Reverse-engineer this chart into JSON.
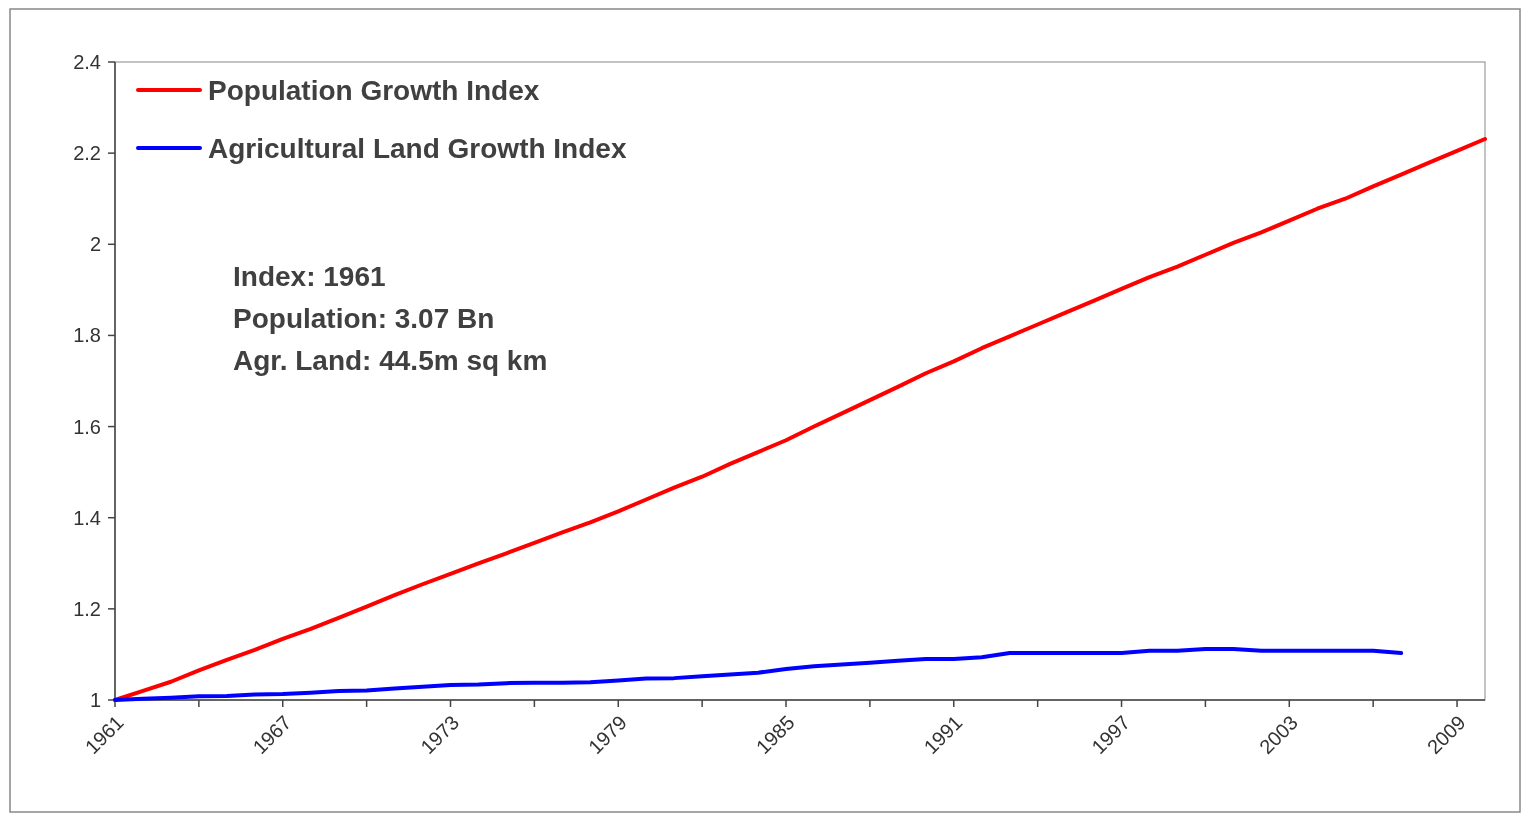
{
  "chart_data": {
    "type": "line",
    "x": [
      1961,
      1962,
      1963,
      1964,
      1965,
      1966,
      1967,
      1968,
      1969,
      1970,
      1971,
      1972,
      1973,
      1974,
      1975,
      1976,
      1977,
      1978,
      1979,
      1980,
      1981,
      1982,
      1983,
      1984,
      1985,
      1986,
      1987,
      1988,
      1989,
      1990,
      1991,
      1992,
      1993,
      1994,
      1995,
      1996,
      1997,
      1998,
      1999,
      2000,
      2001,
      2002,
      2003,
      2004,
      2005,
      2006,
      2007,
      2008,
      2009,
      2010
    ],
    "series": [
      {
        "name": "Population Growth Index",
        "color": "#ff0000",
        "values": [
          1,
          1.02,
          1.04,
          1.065,
          1.088,
          1.11,
          1.134,
          1.156,
          1.18,
          1.205,
          1.23,
          1.254,
          1.277,
          1.3,
          1.322,
          1.345,
          1.368,
          1.39,
          1.414,
          1.44,
          1.466,
          1.49,
          1.518,
          1.544,
          1.57,
          1.6,
          1.629,
          1.658,
          1.687,
          1.717,
          1.743,
          1.772,
          1.798,
          1.824,
          1.85,
          1.876,
          1.902,
          1.928,
          1.951,
          1.977,
          2.003,
          2.026,
          2.052,
          2.078,
          2.1,
          2.127,
          2.153,
          2.179,
          2.205,
          2.231
        ]
      },
      {
        "name": "Agricultural Land Growth Index",
        "color": "#0000ff",
        "values": [
          1,
          1.003,
          1.005,
          1.008,
          1.009,
          1.012,
          1.013,
          1.016,
          1.02,
          1.021,
          1.025,
          1.029,
          1.033,
          1.034,
          1.037,
          1.038,
          1.038,
          1.039,
          1.043,
          1.047,
          1.048,
          1.052,
          1.056,
          1.06,
          1.068,
          1.074,
          1.078,
          1.082,
          1.086,
          1.09,
          1.09,
          1.094,
          1.103,
          1.103,
          1.103,
          1.103,
          1.103,
          1.108,
          1.108,
          1.112,
          1.112,
          1.108,
          1.108,
          1.108,
          1.108,
          1.108,
          1.103,
          null,
          null,
          null
        ]
      }
    ],
    "xlim": [
      1961,
      2010
    ],
    "xticks": [
      1961,
      {
        "value": 1964,
        "label": null
      },
      1967,
      {
        "value": 1970,
        "label": null
      },
      1973,
      {
        "value": 1976,
        "label": null
      },
      1979,
      {
        "value": 1982,
        "label": null
      },
      1985,
      {
        "value": 1988,
        "label": null
      },
      1991,
      {
        "value": 1994,
        "label": null
      },
      1997,
      {
        "value": 2000,
        "label": null
      },
      2003,
      {
        "value": 2006,
        "label": null
      },
      2009
    ],
    "ylim": [
      1,
      2.4
    ],
    "yticks": [
      1,
      1.2,
      1.4,
      1.6,
      1.8,
      2,
      2.2,
      2.4
    ],
    "grid": false,
    "legend": "top left",
    "marker": "none",
    "line_style": "solid",
    "annotations": [
      "Index: 1961",
      "Population:  3.07 Bn",
      "Agr. Land:  44.5m sq km"
    ]
  }
}
